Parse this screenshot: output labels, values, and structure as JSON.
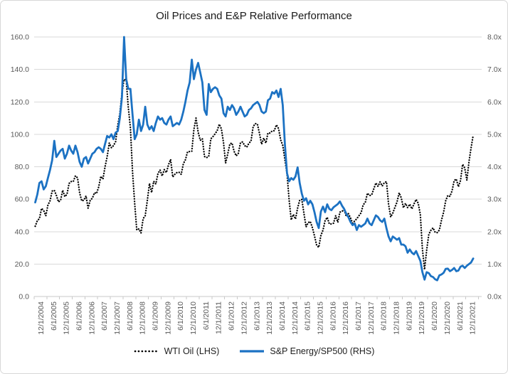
{
  "title": "Oil Prices and E&P Relative Performance",
  "colors": {
    "energy_line": "#1C72C3",
    "wti_line": "#000000",
    "gridline": "#D9D9D9",
    "axis_line": "#C9C9C9",
    "axis_text": "#595959",
    "title_text": "#1A1A1A",
    "legend_text": "#1F1F1F",
    "border": "#D8D8D8",
    "background": "#FFFFFF"
  },
  "legend": {
    "position": "bottom",
    "items": [
      {
        "label": "WTI Oil (LHS)",
        "style": "dotted",
        "color": "#000000"
      },
      {
        "label": "S&P Energy/SP500 (RHS)",
        "style": "solid",
        "color": "#1C72C3"
      }
    ]
  },
  "chart_data": {
    "type": "line",
    "title": "Oil Prices and E&P Relative Performance",
    "x_frequency": "monthly",
    "x_start": "12/1/2004",
    "x_end": "3/1/2022",
    "grid": true,
    "legend_position": "bottom",
    "x_tick_labels": [
      "12/1/2004",
      "6/1/2005",
      "12/1/2005",
      "6/1/2006",
      "12/1/2006",
      "6/1/2007",
      "12/1/2007",
      "6/1/2008",
      "12/1/2008",
      "6/1/2009",
      "12/1/2009",
      "6/1/2010",
      "12/1/2010",
      "6/1/2011",
      "12/1/2011",
      "6/1/2012",
      "12/1/2012",
      "6/1/2013",
      "12/1/2013",
      "6/1/2014",
      "12/1/2014",
      "6/1/2015",
      "12/1/2015",
      "6/1/2016",
      "12/1/2016",
      "6/1/2017",
      "12/1/2017",
      "6/1/2018",
      "12/1/2018",
      "6/1/2019",
      "12/1/2019",
      "6/1/2020",
      "12/1/2020",
      "6/1/2021",
      "12/1/2021"
    ],
    "left_axis": {
      "series": "WTI Oil (LHS)",
      "min": 0,
      "max": 160,
      "tick_step": 20,
      "ticks": [
        "0.0",
        "20.0",
        "40.0",
        "60.0",
        "80.0",
        "100.0",
        "120.0",
        "140.0",
        "160.0"
      ]
    },
    "right_axis": {
      "series": "S&P Energy/SP500 (RHS)",
      "min": 0,
      "max": 8,
      "tick_step": 1,
      "ticks": [
        "0.0x",
        "1.0x",
        "2.0x",
        "3.0x",
        "4.0x",
        "5.0x",
        "6.0x",
        "7.0x",
        "8.0x"
      ]
    },
    "series": [
      {
        "name": "WTI Oil (LHS)",
        "axis": "left",
        "style": "dotted",
        "color": "#000000",
        "values": [
          43.3,
          46.8,
          48.0,
          54.3,
          53.0,
          49.8,
          56.3,
          59.0,
          65.0,
          65.5,
          62.4,
          58.3,
          59.4,
          65.5,
          61.6,
          62.9,
          69.7,
          70.9,
          70.9,
          74.4,
          73.1,
          63.9,
          58.9,
          59.4,
          62.0,
          54.5,
          59.3,
          60.6,
          64.0,
          63.5,
          67.5,
          74.1,
          72.4,
          79.9,
          86.2,
          94.6,
          91.7,
          93.0,
          95.4,
          105.6,
          112.6,
          125.4,
          133.9,
          133.4,
          116.6,
          103.9,
          76.7,
          57.4,
          41.0,
          41.7,
          39.2,
          48.0,
          49.8,
          59.2,
          69.7,
          64.1,
          71.0,
          69.4,
          75.8,
          78.0,
          74.3,
          78.2,
          76.4,
          81.2,
          84.5,
          73.7,
          75.4,
          76.4,
          76.6,
          75.3,
          81.9,
          84.3,
          89.2,
          89.4,
          89.6,
          102.9,
          110.0,
          101.3,
          96.3,
          97.3,
          86.3,
          85.6,
          86.4,
          97.2,
          98.6,
          100.3,
          102.3,
          106.2,
          103.3,
          94.7,
          82.3,
          87.9,
          94.1,
          94.6,
          89.5,
          86.7,
          88.3,
          94.8,
          95.3,
          93.0,
          92.1,
          94.5,
          95.8,
          104.7,
          106.6,
          106.3,
          100.5,
          93.9,
          97.6,
          94.6,
          100.8,
          100.8,
          102.1,
          102.2,
          105.8,
          103.6,
          96.5,
          93.2,
          84.4,
          75.8,
          59.3,
          47.2,
          50.6,
          47.8,
          54.5,
          59.3,
          59.8,
          51.2,
          42.9,
          45.5,
          46.2,
          42.4,
          37.2,
          31.7,
          30.3,
          37.6,
          41.0,
          46.7,
          48.8,
          44.7,
          44.7,
          45.2,
          49.8,
          45.7,
          52.0,
          52.5,
          53.5,
          49.3,
          51.1,
          48.5,
          45.2,
          46.6,
          48.0,
          49.8,
          51.6,
          56.6,
          57.9,
          63.7,
          62.2,
          62.7,
          66.3,
          70.0,
          67.9,
          70.6,
          68.1,
          70.2,
          70.8,
          57.0,
          49.0,
          51.4,
          55.0,
          58.2,
          63.9,
          60.8,
          54.7,
          57.4,
          54.8,
          56.9,
          54.0,
          57.0,
          59.8,
          57.5,
          50.5,
          29.2,
          16.6,
          28.6,
          38.3,
          40.8,
          42.3,
          39.6,
          39.4,
          41.0,
          47.0,
          52.0,
          59.0,
          62.3,
          61.7,
          65.2,
          71.4,
          72.4,
          67.7,
          71.6,
          81.5,
          79.2,
          71.7,
          83.2,
          91.6,
          99.5
        ]
      },
      {
        "name": "S&P Energy/SP500 (RHS)",
        "axis": "right",
        "style": "solid",
        "color": "#1C72C3",
        "values": [
          2.9,
          3.15,
          3.5,
          3.55,
          3.3,
          3.4,
          3.65,
          3.9,
          4.2,
          4.8,
          4.3,
          4.4,
          4.5,
          4.55,
          4.25,
          4.4,
          4.65,
          4.5,
          4.4,
          4.65,
          4.45,
          4.15,
          4.0,
          4.25,
          4.3,
          4.1,
          4.25,
          4.4,
          4.45,
          4.55,
          4.6,
          4.55,
          4.45,
          4.7,
          4.95,
          4.9,
          5.0,
          4.85,
          5.05,
          5.1,
          5.5,
          6.15,
          8.0,
          6.7,
          6.4,
          6.4,
          5.6,
          4.85,
          5.0,
          5.45,
          5.1,
          5.3,
          5.85,
          5.3,
          5.15,
          5.25,
          5.1,
          5.35,
          5.55,
          5.45,
          5.5,
          5.35,
          5.3,
          5.45,
          5.55,
          5.25,
          5.3,
          5.35,
          5.3,
          5.45,
          5.7,
          6.0,
          6.35,
          6.6,
          7.3,
          6.7,
          7.0,
          7.2,
          6.9,
          6.6,
          5.75,
          5.6,
          6.55,
          6.3,
          6.4,
          6.45,
          6.4,
          6.2,
          6.1,
          5.65,
          5.55,
          5.85,
          5.75,
          5.9,
          5.8,
          5.6,
          5.7,
          5.85,
          5.7,
          5.55,
          5.6,
          5.75,
          5.8,
          5.9,
          5.95,
          6.0,
          5.9,
          5.7,
          5.65,
          5.7,
          6.05,
          6.1,
          6.3,
          6.25,
          6.35,
          6.15,
          6.4,
          5.9,
          4.7,
          3.8,
          3.55,
          3.65,
          3.6,
          3.7,
          3.98,
          3.5,
          3.17,
          2.95,
          3.03,
          2.84,
          2.95,
          2.84,
          2.59,
          2.3,
          2.11,
          2.62,
          2.77,
          2.6,
          2.84,
          2.7,
          2.66,
          2.75,
          2.8,
          2.85,
          2.93,
          2.8,
          2.7,
          2.55,
          2.45,
          2.3,
          2.2,
          2.25,
          2.05,
          2.2,
          2.15,
          2.2,
          2.25,
          2.4,
          2.25,
          2.2,
          2.35,
          2.5,
          2.45,
          2.35,
          2.3,
          2.4,
          2.1,
          1.85,
          1.7,
          1.85,
          1.8,
          1.75,
          1.8,
          1.6,
          1.6,
          1.55,
          1.35,
          1.45,
          1.35,
          1.3,
          1.4,
          1.25,
          1.1,
          0.75,
          0.52,
          0.75,
          0.72,
          0.63,
          0.6,
          0.53,
          0.5,
          0.65,
          0.68,
          0.73,
          0.85,
          0.86,
          0.78,
          0.82,
          0.88,
          0.78,
          0.8,
          0.92,
          0.95,
          0.88,
          0.95,
          1.0,
          1.05,
          1.17
        ]
      }
    ]
  }
}
